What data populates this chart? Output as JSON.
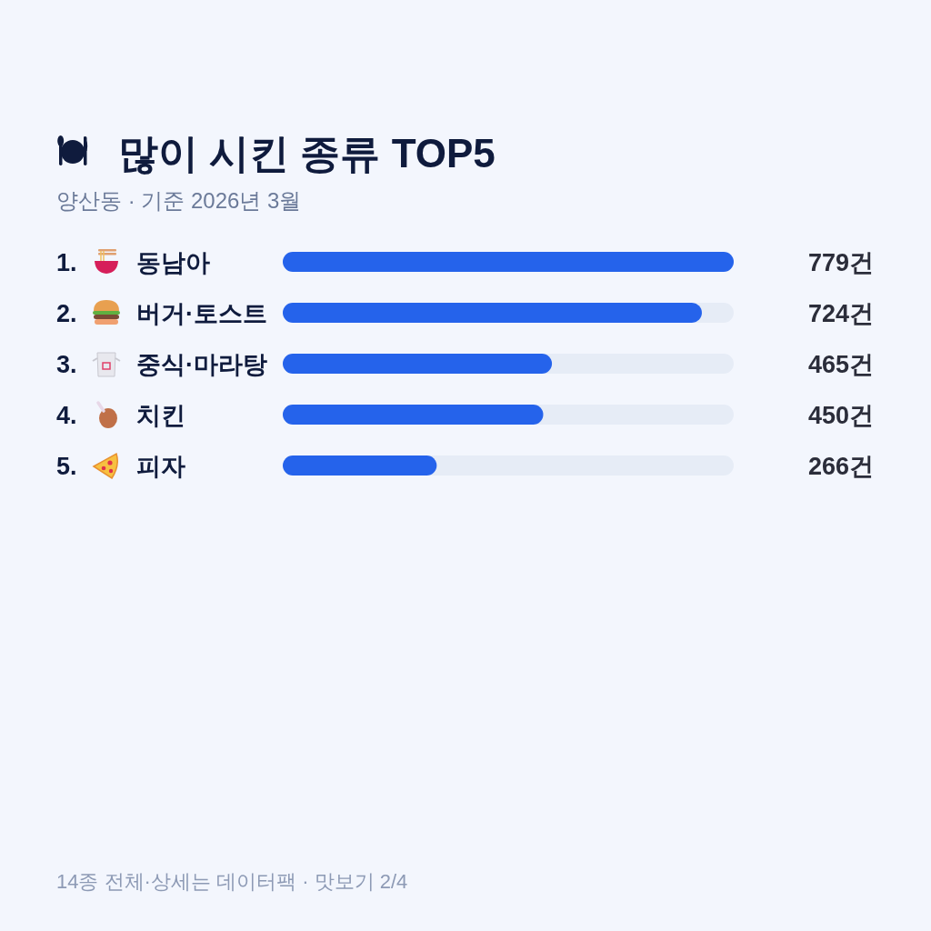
{
  "chart_data": {
    "type": "bar",
    "orientation": "horizontal",
    "title": "많이 시킨 종류 TOP5",
    "subtitle": "양산동 · 기준 2026년 3월",
    "categories": [
      "1. 동남아",
      "2. 버거·토스트",
      "3. 중식·마라탕",
      "4. 치킨",
      "5. 피자"
    ],
    "values": [
      779,
      724,
      465,
      450,
      266
    ],
    "color": "#2563eb",
    "value_labels": [
      "779건",
      "724건",
      "465건",
      "450건",
      "266건"
    ],
    "annotations": [
      "14종 전체·상세는 데이터팩 · 맛보기 2/4"
    ]
  }
}
